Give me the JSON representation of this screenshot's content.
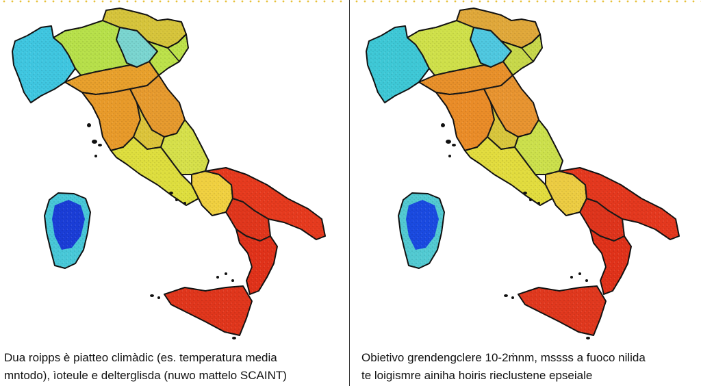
{
  "panels": [
    {
      "caption_line1": "Dua roipps è piatteo climàdic (es. temperatura media",
      "caption_line2": "mntodo), ìoteule e delterglisda (nuwo mattelo SCAINT)",
      "regions": {
        "northwest": "#3fc6e0",
        "north_mid": "#b7e04a",
        "alps": "#d6c43b",
        "northeast_inner": "#7ad5d0",
        "northeast_outer": "#bde24a",
        "emilia": "#e8a02c",
        "tuscany": "#e89a2a",
        "marche": "#e69a2e",
        "umbria": "#dcc43a",
        "lazio": "#dede3e",
        "abruzzo": "#d6e04a",
        "campania": "#f0d040",
        "puglia": "#e63a1e",
        "basilicata": "#e0361c",
        "calabria": "#e0321a",
        "sicily": "#e0361c",
        "sardinia_core": "#1a3dd6",
        "sardinia_edge": "#48c8d8"
      }
    },
    {
      "caption_line1": "Obietivo grendengclere 10-2ṁnm, mssss a fuoco nilida",
      "caption_line2": "te loigismre ainiha  hoiris rieclustene epseiale",
      "regions": {
        "northwest": "#3ec8d6",
        "north_mid": "#cfe04a",
        "alps": "#e0a83a",
        "northeast_inner": "#4fc8e0",
        "northeast_outer": "#c8d84a",
        "emilia": "#e8902a",
        "tuscany": "#ea8c28",
        "marche": "#e89430",
        "umbria": "#d8c63c",
        "lazio": "#e2dc3e",
        "abruzzo": "#cce04c",
        "campania": "#eccc42",
        "puglia": "#e4381e",
        "basilicata": "#de341c",
        "calabria": "#e0321a",
        "sicily": "#e0381e",
        "sardinia_core": "#1a4ae0",
        "sardinia_edge": "#52cad2"
      }
    }
  ]
}
